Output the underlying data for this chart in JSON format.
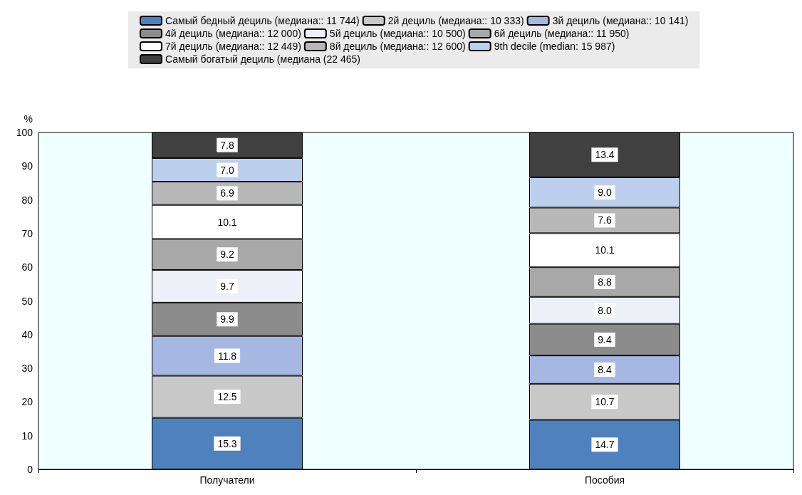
{
  "chart_data": {
    "type": "bar",
    "stacked": true,
    "ylabel": "%",
    "categories": [
      "Получатели",
      "Пособия"
    ],
    "ylim": [
      0,
      100
    ],
    "yticks": [
      0,
      10,
      20,
      30,
      40,
      50,
      60,
      70,
      80,
      90,
      100
    ],
    "grid": false,
    "legend": "top",
    "series": [
      {
        "name": "Самый бедный дециль (медиана:: 11 744)",
        "color": "#4f81bd",
        "values": [
          15.3,
          14.7
        ],
        "value_labels": [
          "15.3",
          "14.7"
        ]
      },
      {
        "name": "2й дециль (медиана:: 10 333)",
        "color": "#c8c8c8",
        "values": [
          12.5,
          10.7
        ],
        "value_labels": [
          "12.5",
          "10.7"
        ]
      },
      {
        "name": "3й дециль (медиана:: 10 141)",
        "color": "#a6b8e2",
        "values": [
          11.8,
          8.4
        ],
        "value_labels": [
          "11.8",
          "8.4"
        ]
      },
      {
        "name": "4й дециль (медиана:: 12 000)",
        "color": "#8c8c8c",
        "values": [
          9.9,
          9.4
        ],
        "value_labels": [
          "9.9",
          "9.4"
        ]
      },
      {
        "name": "5й дециль (медиана:: 10 500)",
        "color": "#eef0f8",
        "values": [
          9.7,
          8.0
        ],
        "value_labels": [
          "9.7",
          "8.0"
        ]
      },
      {
        "name": "6й дециль (медиана:: 11 950)",
        "color": "#a8a8a8",
        "values": [
          9.2,
          8.8
        ],
        "value_labels": [
          "9.2",
          "8.8"
        ]
      },
      {
        "name": "7й дециль (медиана:: 12 449)",
        "color": "#ffffff",
        "values": [
          10.1,
          10.1
        ],
        "value_labels": [
          "10.1",
          "10.1"
        ]
      },
      {
        "name": "8й дециль (медиана:: 12 600)",
        "color": "#b8b8b8",
        "values": [
          6.9,
          7.6
        ],
        "value_labels": [
          "6.9",
          "7.6"
        ]
      },
      {
        "name": "9th decile (median: 15 987)",
        "color": "#bcd0ee",
        "values": [
          7.0,
          9.0
        ],
        "value_labels": [
          "7.0",
          "9.0"
        ]
      },
      {
        "name": "Самый богатый дециль (медиана (22 465)",
        "color": "#404040",
        "values": [
          7.8,
          13.4
        ],
        "value_labels": [
          "7.8",
          "13.4"
        ]
      }
    ]
  }
}
